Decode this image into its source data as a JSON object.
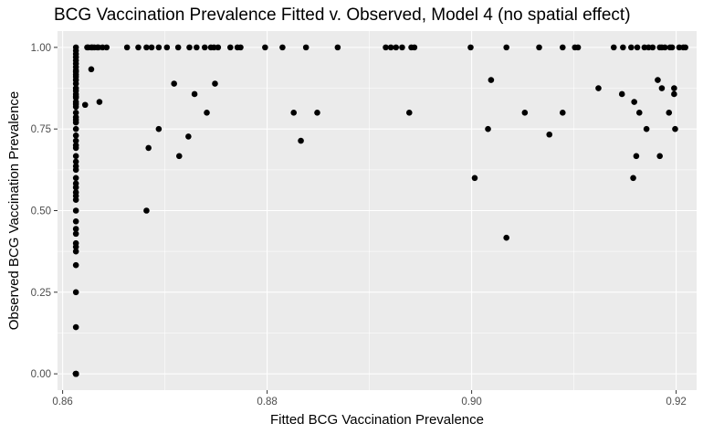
{
  "chart_data": {
    "type": "scatter",
    "title": "BCG Vaccination Prevalence Fitted v. Observed, Model 4 (no spatial effect)",
    "xlabel": "Fitted BCG Vaccination Prevalence",
    "ylabel": "Observed BCG Vaccination Prevalence",
    "xlim": [
      0.8595,
      0.922
    ],
    "ylim": [
      -0.05,
      1.05
    ],
    "xticks": [
      0.86,
      0.88,
      0.9,
      0.92
    ],
    "xtick_labels": [
      "0.86",
      "0.88",
      "0.90",
      "0.92"
    ],
    "yticks": [
      0.0,
      0.25,
      0.5,
      0.75,
      1.0
    ],
    "ytick_labels": [
      "0.00",
      "0.25",
      "0.50",
      "0.75",
      "1.00"
    ],
    "grid": true,
    "background": "#ebebeb",
    "point_color": "#000000",
    "x": [
      0.8613,
      0.8613,
      0.8613,
      0.8613,
      0.8613,
      0.8613,
      0.8613,
      0.8613,
      0.8613,
      0.8613,
      0.8613,
      0.8613,
      0.8613,
      0.8613,
      0.8613,
      0.8613,
      0.8613,
      0.8613,
      0.8613,
      0.8613,
      0.8613,
      0.8613,
      0.8613,
      0.8613,
      0.8613,
      0.8613,
      0.8613,
      0.8613,
      0.8613,
      0.8613,
      0.8613,
      0.8613,
      0.8613,
      0.8613,
      0.8613,
      0.8613,
      0.8613,
      0.8613,
      0.8613,
      0.8613,
      0.8613,
      0.8613,
      0.8613,
      0.8613,
      0.8613,
      0.8613,
      0.8613,
      0.8613,
      0.8613,
      0.8613,
      0.8613,
      0.8613,
      0.8613,
      0.8613,
      0.8613,
      0.8613,
      0.8613,
      0.8613,
      0.8613,
      0.8613,
      0.8613,
      0.8613,
      0.8613,
      0.8624,
      0.8628,
      0.8631,
      0.8635,
      0.8639,
      0.8643,
      0.8625,
      0.8629,
      0.8634,
      0.8663,
      0.8674,
      0.8682,
      0.8687,
      0.8694,
      0.8702,
      0.8713,
      0.8724,
      0.8731,
      0.8739,
      0.8745,
      0.8748,
      0.8752,
      0.8764,
      0.8771,
      0.8774,
      0.8798,
      0.8815,
      0.8838,
      0.8869,
      0.8916,
      0.8921,
      0.8926,
      0.8932,
      0.8941,
      0.8944,
      0.8999,
      0.9034,
      0.9066,
      0.9089,
      0.9101,
      0.9104,
      0.9139,
      0.9148,
      0.9156,
      0.9162,
      0.9169,
      0.9173,
      0.9177,
      0.9184,
      0.9186,
      0.9189,
      0.9194,
      0.9196,
      0.9203,
      0.9207,
      0.9209,
      0.8622,
      0.8628,
      0.8636,
      0.8684,
      0.8694,
      0.8709,
      0.8714,
      0.8723,
      0.8729,
      0.8741,
      0.8749,
      0.8826,
      0.8833,
      0.8849,
      0.8939,
      0.9003,
      0.9016,
      0.9019,
      0.9034,
      0.9052,
      0.9076,
      0.9089,
      0.9124,
      0.9147,
      0.9158,
      0.9159,
      0.9161,
      0.9164,
      0.9171,
      0.9182,
      0.9184,
      0.9186,
      0.9193,
      0.9198,
      0.9198,
      0.9199,
      0.8682
    ],
    "y": [
      1.0,
      0.99,
      0.98,
      0.97,
      0.96,
      0.95,
      0.94,
      0.93,
      0.925,
      0.917,
      0.91,
      0.9,
      0.889,
      0.875,
      0.867,
      0.857,
      0.85,
      0.846,
      0.833,
      0.826,
      0.818,
      0.8,
      0.786,
      0.778,
      0.77,
      0.75,
      0.73,
      0.714,
      0.7,
      0.692,
      0.667,
      0.65,
      0.636,
      0.625,
      0.6,
      0.583,
      0.571,
      0.556,
      0.545,
      0.533,
      0.5,
      0.467,
      0.444,
      0.429,
      0.4,
      0.389,
      0.375,
      0.333,
      0.25,
      0.143,
      0.0,
      0.0,
      0.0,
      0.0,
      0.0,
      0.0,
      0.0,
      0.0,
      0.0,
      0.0,
      0.0,
      0.0,
      0.0,
      1.0,
      1.0,
      1.0,
      1.0,
      1.0,
      1.0,
      1.0,
      1.0,
      1.0,
      1.0,
      1.0,
      1.0,
      1.0,
      1.0,
      1.0,
      1.0,
      1.0,
      1.0,
      1.0,
      1.0,
      1.0,
      1.0,
      1.0,
      1.0,
      1.0,
      1.0,
      1.0,
      1.0,
      1.0,
      1.0,
      1.0,
      1.0,
      1.0,
      1.0,
      1.0,
      1.0,
      1.0,
      1.0,
      1.0,
      1.0,
      1.0,
      1.0,
      1.0,
      1.0,
      1.0,
      1.0,
      1.0,
      1.0,
      1.0,
      1.0,
      1.0,
      1.0,
      1.0,
      1.0,
      1.0,
      1.0,
      0.824,
      0.933,
      0.833,
      0.692,
      0.75,
      0.889,
      0.667,
      0.727,
      0.857,
      0.8,
      0.889,
      0.8,
      0.714,
      0.8,
      0.8,
      0.6,
      0.75,
      0.9,
      0.417,
      0.8,
      0.733,
      0.8,
      0.875,
      0.857,
      0.6,
      0.833,
      0.667,
      0.8,
      0.75,
      0.9,
      0.667,
      0.875,
      0.8,
      0.875,
      0.857,
      0.75,
      0.5
    ]
  }
}
